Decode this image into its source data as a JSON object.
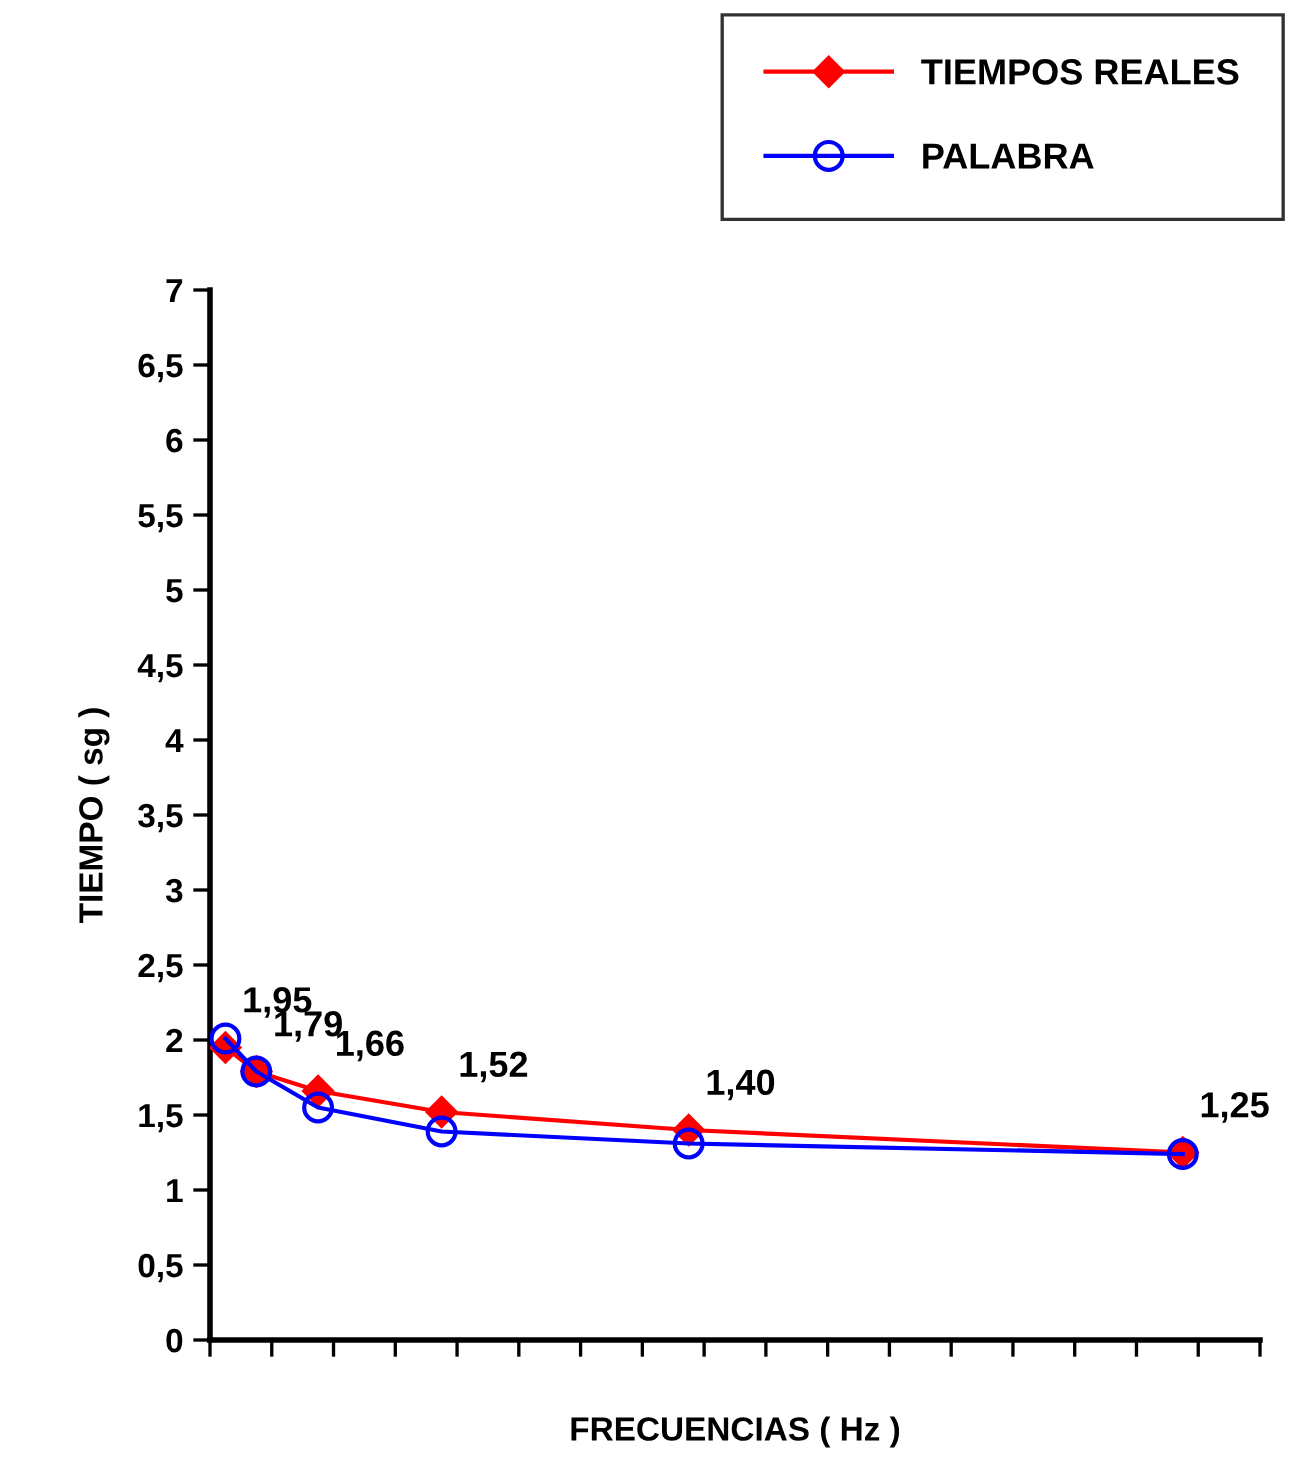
{
  "chart_data": {
    "type": "line",
    "xlabel": "FRECUENCIAS ( Hz )",
    "ylabel": "TIEMPO ( sg )",
    "categories": [
      null,
      null,
      null,
      null,
      null,
      null,
      null,
      null,
      null,
      null,
      null,
      null,
      null,
      null,
      null,
      null,
      null,
      null,
      null,
      null,
      null,
      null,
      null,
      null,
      null,
      null,
      null,
      null,
      null,
      null,
      null,
      null,
      null,
      null
    ],
    "ylim": [
      0,
      7
    ],
    "yticks": [
      {
        "value": 0,
        "label": "0"
      },
      {
        "value": 0.5,
        "label": "0,5"
      },
      {
        "value": 1,
        "label": "1"
      },
      {
        "value": 1.5,
        "label": "1,5"
      },
      {
        "value": 2,
        "label": "2"
      },
      {
        "value": 2.5,
        "label": "2,5"
      },
      {
        "value": 3,
        "label": "3"
      },
      {
        "value": 3.5,
        "label": "3,5"
      },
      {
        "value": 4,
        "label": "4"
      },
      {
        "value": 4.5,
        "label": "4,5"
      },
      {
        "value": 5,
        "label": "5"
      },
      {
        "value": 5.5,
        "label": "5,5"
      },
      {
        "value": 6,
        "label": "6"
      },
      {
        "value": 6.5,
        "label": "6,5"
      },
      {
        "value": 7,
        "label": "7"
      }
    ],
    "grid": false,
    "legend": "top right",
    "series": [
      {
        "name": "TIEMPOS REALES",
        "color": "#ff0000",
        "marker": "diamond",
        "values": [
          1.95,
          1.79,
          null,
          1.66,
          null,
          null,
          null,
          1.52,
          null,
          null,
          null,
          null,
          null,
          null,
          null,
          1.4,
          null,
          null,
          null,
          null,
          null,
          null,
          null,
          null,
          null,
          null,
          null,
          null,
          null,
          null,
          null,
          1.25,
          null,
          null
        ],
        "value_labels": [
          "1,95",
          "1,79",
          null,
          "1,66",
          null,
          null,
          null,
          "1,52",
          null,
          null,
          null,
          null,
          null,
          null,
          null,
          "1,40",
          null,
          null,
          null,
          null,
          null,
          null,
          null,
          null,
          null,
          null,
          null,
          null,
          null,
          null,
          null,
          "1,25",
          null,
          null
        ]
      },
      {
        "name": "PALABRA",
        "color": "#0000ff",
        "marker": "circle",
        "values": [
          2.01,
          1.79,
          null,
          1.55,
          null,
          null,
          null,
          1.39,
          null,
          null,
          null,
          null,
          null,
          null,
          null,
          1.31,
          null,
          null,
          null,
          null,
          null,
          null,
          null,
          null,
          null,
          null,
          null,
          null,
          null,
          null,
          null,
          1.24,
          null,
          null
        ]
      }
    ]
  }
}
